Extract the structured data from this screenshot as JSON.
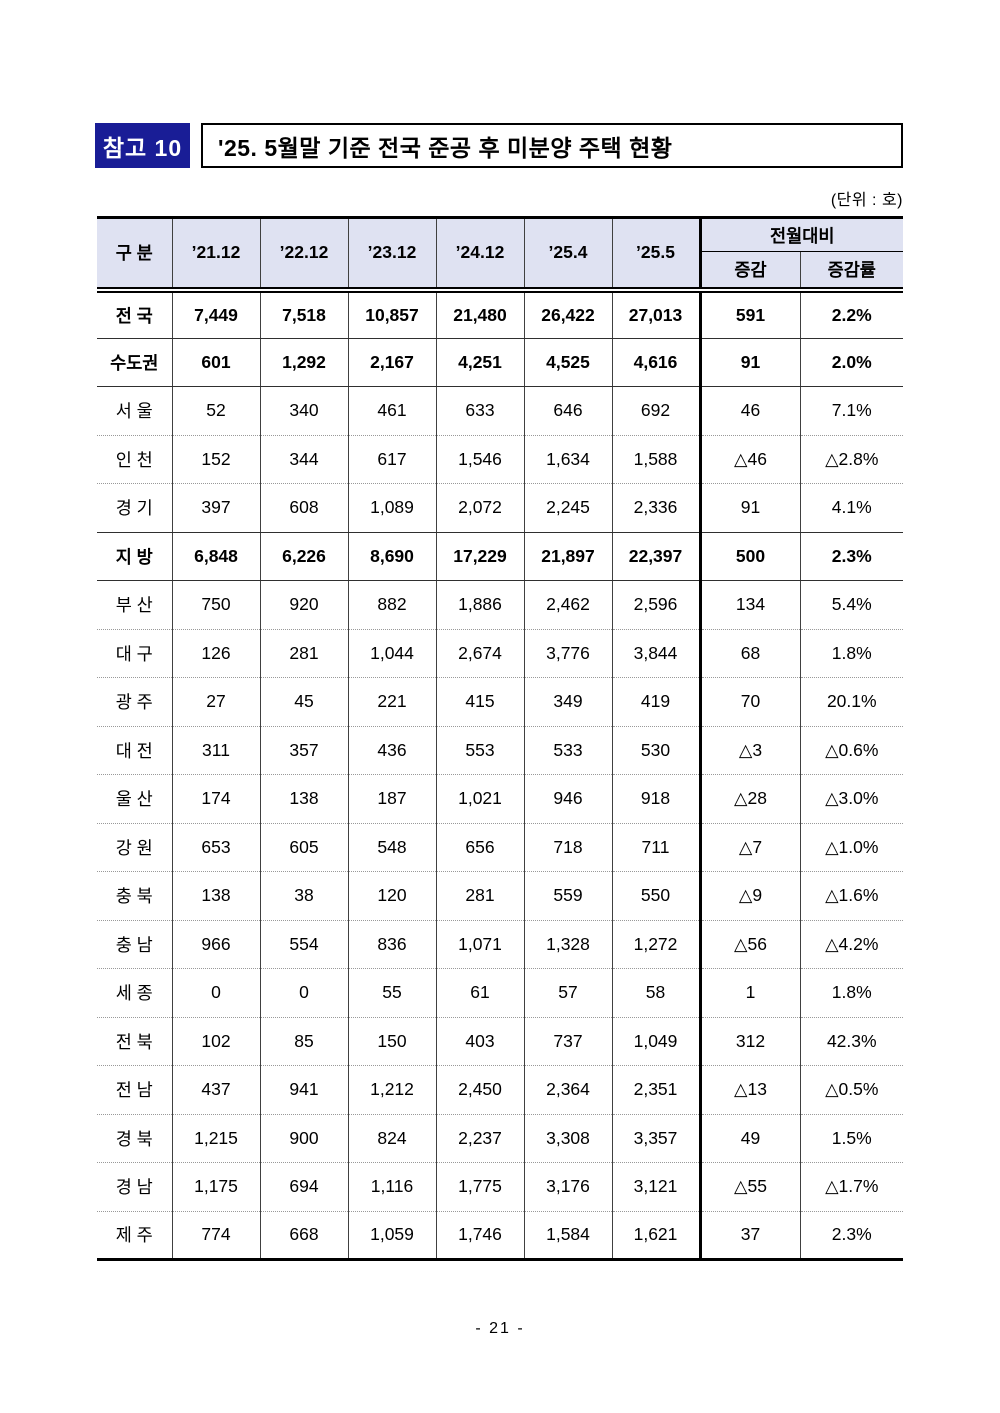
{
  "page": {
    "badge_label": "참고 10",
    "title": "'25. 5월말 기준 전국 준공 후 미분양 주택 현황",
    "unit_note": "(단위 : 호)",
    "page_number": "- 21 -"
  },
  "colors": {
    "badge_bg": "#191d96",
    "header_bg": "#dfe2f2"
  },
  "table": {
    "header": {
      "category": "구 분",
      "periods": [
        "’21.12",
        "’22.12",
        "’23.12",
        "’24.12",
        "’25.4",
        "’25.5"
      ],
      "mom_group": "전월대비",
      "mom_change": "증감",
      "mom_change_rate": "증감률"
    },
    "rows": [
      {
        "label": "전 국",
        "values": [
          "7,449",
          "7,518",
          "10,857",
          "21,480",
          "26,422",
          "27,013"
        ],
        "change": "591",
        "change_rate": "2.2%",
        "emphasis": true,
        "divider": "solid"
      },
      {
        "label": "수도권",
        "values": [
          "601",
          "1,292",
          "2,167",
          "4,251",
          "4,525",
          "4,616"
        ],
        "change": "91",
        "change_rate": "2.0%",
        "emphasis": true,
        "divider": "solid"
      },
      {
        "label": "서 울",
        "values": [
          "52",
          "340",
          "461",
          "633",
          "646",
          "692"
        ],
        "change": "46",
        "change_rate": "7.1%",
        "emphasis": false,
        "divider": "dotted"
      },
      {
        "label": "인 천",
        "values": [
          "152",
          "344",
          "617",
          "1,546",
          "1,634",
          "1,588"
        ],
        "change": "△46",
        "change_rate": "△2.8%",
        "emphasis": false,
        "divider": "dotted"
      },
      {
        "label": "경 기",
        "values": [
          "397",
          "608",
          "1,089",
          "2,072",
          "2,245",
          "2,336"
        ],
        "change": "91",
        "change_rate": "4.1%",
        "emphasis": false,
        "divider": "solid"
      },
      {
        "label": "지 방",
        "values": [
          "6,848",
          "6,226",
          "8,690",
          "17,229",
          "21,897",
          "22,397"
        ],
        "change": "500",
        "change_rate": "2.3%",
        "emphasis": true,
        "divider": "solid"
      },
      {
        "label": "부 산",
        "values": [
          "750",
          "920",
          "882",
          "1,886",
          "2,462",
          "2,596"
        ],
        "change": "134",
        "change_rate": "5.4%",
        "emphasis": false,
        "divider": "dotted"
      },
      {
        "label": "대 구",
        "values": [
          "126",
          "281",
          "1,044",
          "2,674",
          "3,776",
          "3,844"
        ],
        "change": "68",
        "change_rate": "1.8%",
        "emphasis": false,
        "divider": "dotted"
      },
      {
        "label": "광 주",
        "values": [
          "27",
          "45",
          "221",
          "415",
          "349",
          "419"
        ],
        "change": "70",
        "change_rate": "20.1%",
        "emphasis": false,
        "divider": "dotted"
      },
      {
        "label": "대 전",
        "values": [
          "311",
          "357",
          "436",
          "553",
          "533",
          "530"
        ],
        "change": "△3",
        "change_rate": "△0.6%",
        "emphasis": false,
        "divider": "dotted"
      },
      {
        "label": "울 산",
        "values": [
          "174",
          "138",
          "187",
          "1,021",
          "946",
          "918"
        ],
        "change": "△28",
        "change_rate": "△3.0%",
        "emphasis": false,
        "divider": "dotted"
      },
      {
        "label": "강 원",
        "values": [
          "653",
          "605",
          "548",
          "656",
          "718",
          "711"
        ],
        "change": "△7",
        "change_rate": "△1.0%",
        "emphasis": false,
        "divider": "dotted"
      },
      {
        "label": "충 북",
        "values": [
          "138",
          "38",
          "120",
          "281",
          "559",
          "550"
        ],
        "change": "△9",
        "change_rate": "△1.6%",
        "emphasis": false,
        "divider": "dotted"
      },
      {
        "label": "충 남",
        "values": [
          "966",
          "554",
          "836",
          "1,071",
          "1,328",
          "1,272"
        ],
        "change": "△56",
        "change_rate": "△4.2%",
        "emphasis": false,
        "divider": "dotted"
      },
      {
        "label": "세 종",
        "values": [
          "0",
          "0",
          "55",
          "61",
          "57",
          "58"
        ],
        "change": "1",
        "change_rate": "1.8%",
        "emphasis": false,
        "divider": "dotted"
      },
      {
        "label": "전 북",
        "values": [
          "102",
          "85",
          "150",
          "403",
          "737",
          "1,049"
        ],
        "change": "312",
        "change_rate": "42.3%",
        "emphasis": false,
        "divider": "dotted"
      },
      {
        "label": "전 남",
        "values": [
          "437",
          "941",
          "1,212",
          "2,450",
          "2,364",
          "2,351"
        ],
        "change": "△13",
        "change_rate": "△0.5%",
        "emphasis": false,
        "divider": "dotted"
      },
      {
        "label": "경 북",
        "values": [
          "1,215",
          "900",
          "824",
          "2,237",
          "3,308",
          "3,357"
        ],
        "change": "49",
        "change_rate": "1.5%",
        "emphasis": false,
        "divider": "dotted"
      },
      {
        "label": "경 남",
        "values": [
          "1,175",
          "694",
          "1,116",
          "1,775",
          "3,176",
          "3,121"
        ],
        "change": "△55",
        "change_rate": "△1.7%",
        "emphasis": false,
        "divider": "dotted"
      },
      {
        "label": "제 주",
        "values": [
          "774",
          "668",
          "1,059",
          "1,746",
          "1,584",
          "1,621"
        ],
        "change": "37",
        "change_rate": "2.3%",
        "emphasis": false,
        "divider": "none"
      }
    ]
  }
}
